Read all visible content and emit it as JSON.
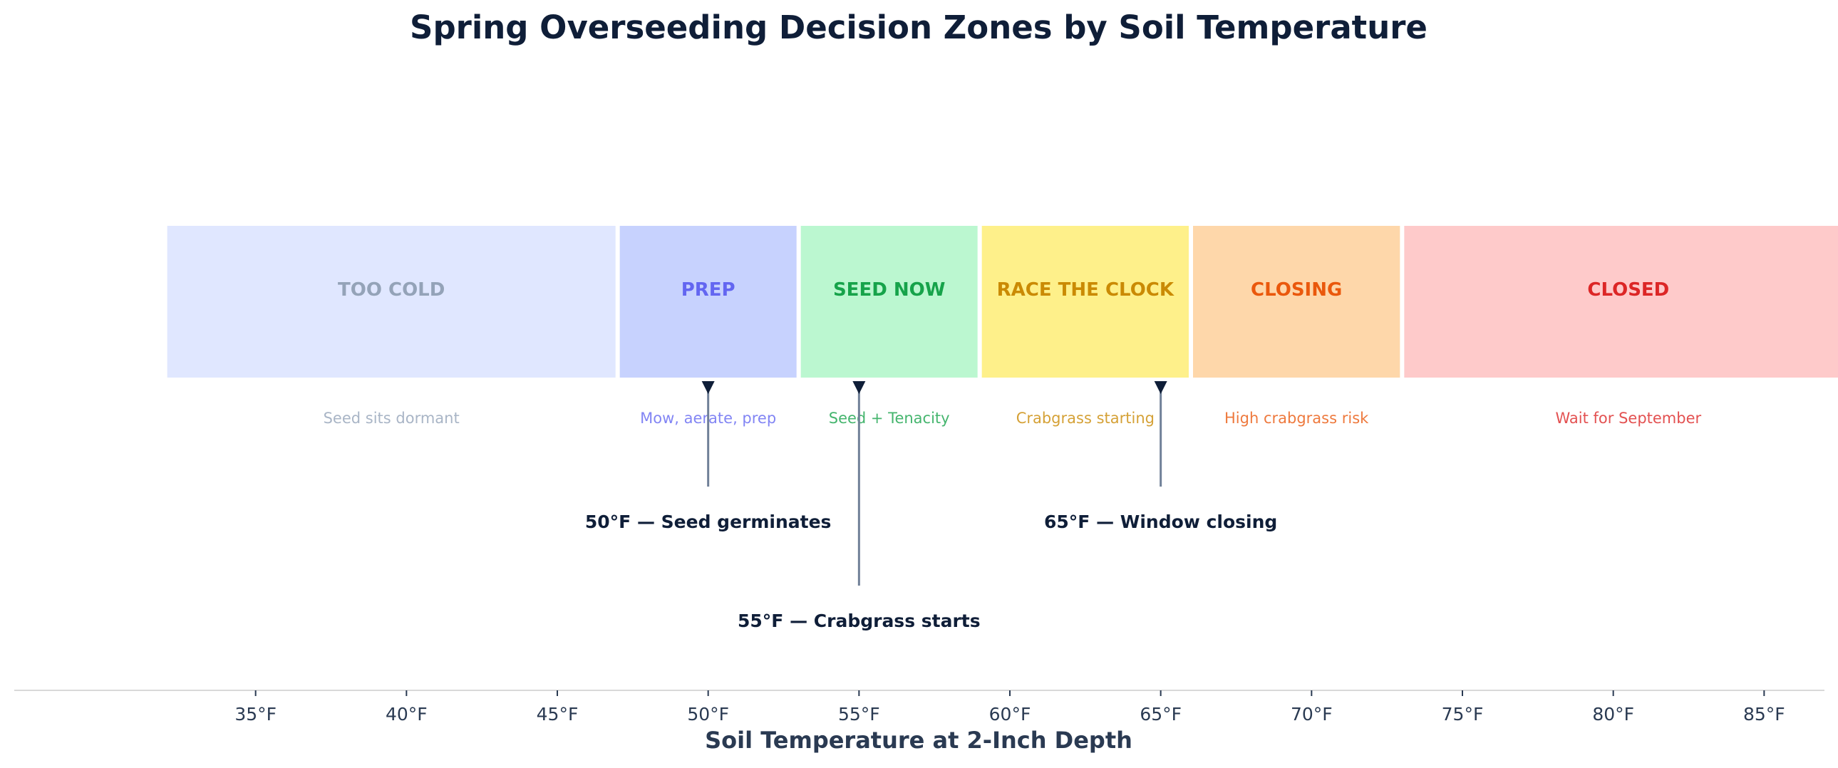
{
  "chart_data": {
    "type": "table",
    "title": "Spring Overseeding Decision Zones by Soil Temperature",
    "xlabel": "Soil Temperature at 2-Inch Depth",
    "xlim": [
      27,
      87
    ],
    "xticks": [
      35,
      40,
      45,
      50,
      55,
      60,
      65,
      70,
      75,
      80,
      85
    ],
    "xtick_labels": [
      "35°F",
      "40°F",
      "45°F",
      "50°F",
      "55°F",
      "60°F",
      "65°F",
      "70°F",
      "75°F",
      "80°F",
      "85°F"
    ],
    "zones": [
      {
        "name": "TOO COLD",
        "description": "Seed sits dormant",
        "start": 32,
        "end": 47,
        "fill": "#e0e7ff",
        "text_color": "#94a3b8"
      },
      {
        "name": "PREP",
        "description": "Mow, aerate, prep",
        "start": 47,
        "end": 53,
        "fill": "#c7d2fe",
        "text_color": "#6366f1"
      },
      {
        "name": "SEED NOW",
        "description": "Seed + Tenacity",
        "start": 53,
        "end": 59,
        "fill": "#bbf7d0",
        "text_color": "#16a34a"
      },
      {
        "name": "RACE THE CLOCK",
        "description": "Crabgrass starting",
        "start": 59,
        "end": 66,
        "fill": "#fef08a",
        "text_color": "#ca8a04"
      },
      {
        "name": "CLOSING",
        "description": "High crabgrass risk",
        "start": 66,
        "end": 73,
        "fill": "#fed7aa",
        "text_color": "#ea580c"
      },
      {
        "name": "CLOSED",
        "description": "Wait for September",
        "start": 73,
        "end": 88,
        "fill": "#fecaca",
        "text_color": "#dc2626"
      }
    ],
    "annotations": [
      {
        "x": 50,
        "label": "50°F — Seed germinates",
        "level": 1
      },
      {
        "x": 55,
        "label": "55°F — Crabgrass starts",
        "level": 2
      },
      {
        "x": 65,
        "label": "65°F — Window closing",
        "level": 1
      }
    ],
    "colors": {
      "title": "#0f1e38",
      "axis_text": "#2a3a52",
      "annotation_text": "#0f1e38",
      "arrow_line": "#708098",
      "arrow_head": "#0f1e38",
      "axis_line": "#d9d9d9"
    }
  }
}
